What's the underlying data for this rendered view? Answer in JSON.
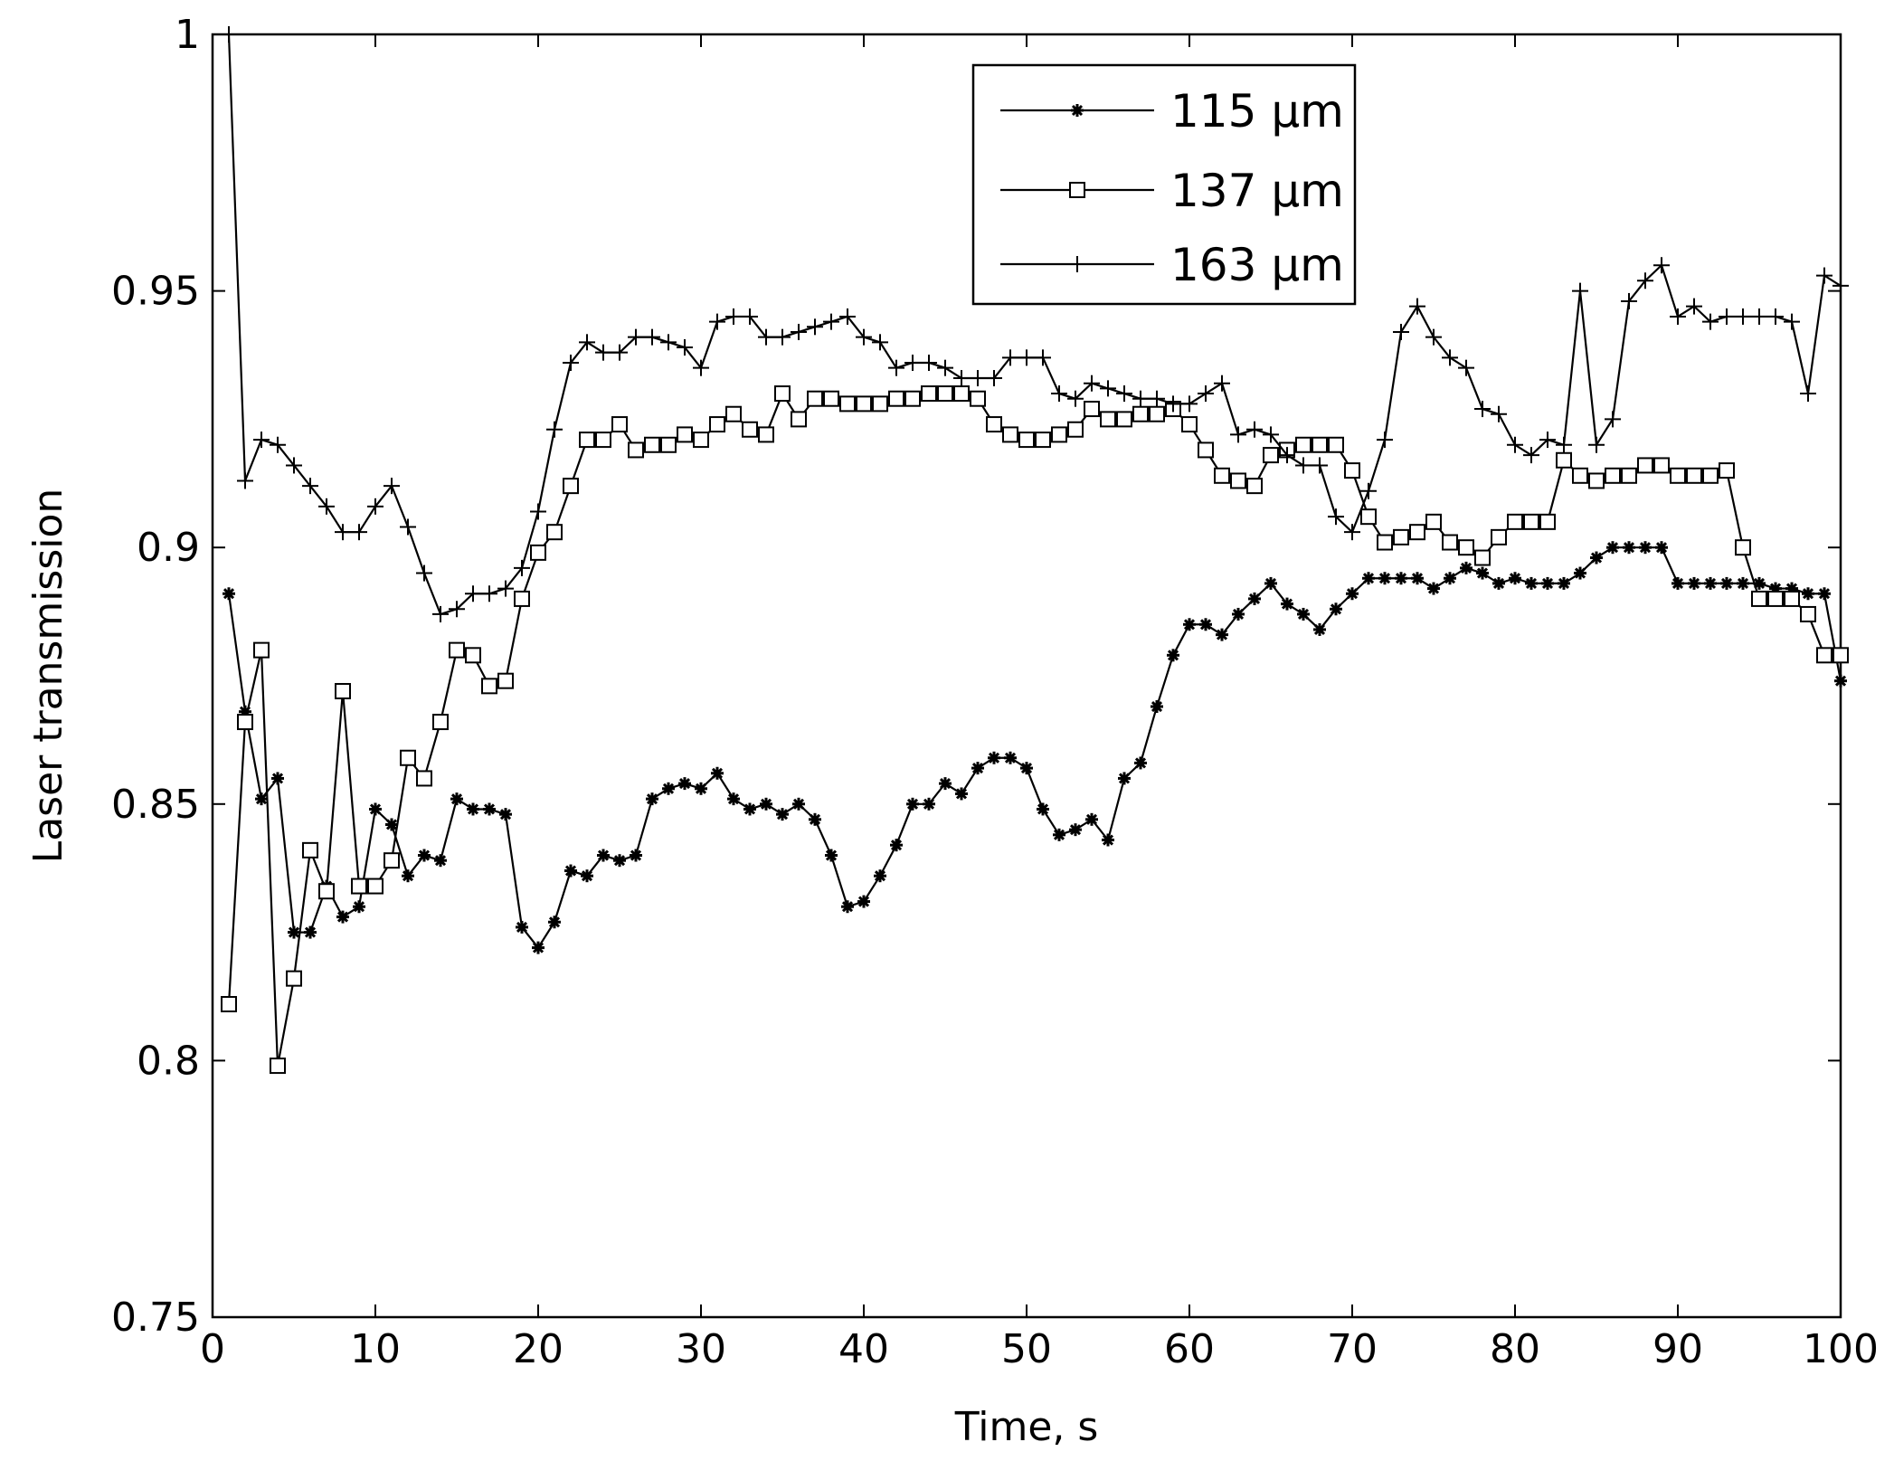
{
  "chart_data": {
    "type": "line",
    "title": "",
    "xlabel": "Time, s",
    "ylabel": "Laser transmission",
    "xlim": [
      0,
      100
    ],
    "ylim": [
      0.75,
      1.0
    ],
    "xticks": [
      0,
      10,
      20,
      30,
      40,
      50,
      60,
      70,
      80,
      90,
      100
    ],
    "yticks": [
      0.75,
      0.8,
      0.85,
      0.9,
      0.95,
      1.0
    ],
    "xtick_labels": [
      "0",
      "10",
      "20",
      "30",
      "40",
      "50",
      "60",
      "70",
      "80",
      "90",
      "100"
    ],
    "ytick_labels": [
      "0.75",
      "0.8",
      "0.85",
      "0.9",
      "0.95",
      "1"
    ],
    "grid": false,
    "legend_position": "top-right",
    "x": [
      1,
      2,
      3,
      4,
      5,
      6,
      7,
      8,
      9,
      10,
      11,
      12,
      13,
      14,
      15,
      16,
      17,
      18,
      19,
      20,
      21,
      22,
      23,
      24,
      25,
      26,
      27,
      28,
      29,
      30,
      31,
      32,
      33,
      34,
      35,
      36,
      37,
      38,
      39,
      40,
      41,
      42,
      43,
      44,
      45,
      46,
      47,
      48,
      49,
      50,
      51,
      52,
      53,
      54,
      55,
      56,
      57,
      58,
      59,
      60,
      61,
      62,
      63,
      64,
      65,
      66,
      67,
      68,
      69,
      70,
      71,
      72,
      73,
      74,
      75,
      76,
      77,
      78,
      79,
      80,
      81,
      82,
      83,
      84,
      85,
      86,
      87,
      88,
      89,
      90,
      91,
      92,
      93,
      94,
      95,
      96,
      97,
      98,
      99,
      100
    ],
    "series": [
      {
        "name": "115 µm",
        "marker": "star",
        "values": [
          0.891,
          0.868,
          0.851,
          0.855,
          0.825,
          0.825,
          0.834,
          0.828,
          0.83,
          0.849,
          0.846,
          0.836,
          0.84,
          0.839,
          0.851,
          0.849,
          0.849,
          0.848,
          0.826,
          0.822,
          0.827,
          0.837,
          0.836,
          0.84,
          0.839,
          0.84,
          0.851,
          0.853,
          0.854,
          0.853,
          0.856,
          0.851,
          0.849,
          0.85,
          0.848,
          0.85,
          0.847,
          0.84,
          0.83,
          0.831,
          0.836,
          0.842,
          0.85,
          0.85,
          0.854,
          0.852,
          0.857,
          0.859,
          0.859,
          0.857,
          0.849,
          0.844,
          0.845,
          0.847,
          0.843,
          0.855,
          0.858,
          0.869,
          0.879,
          0.885,
          0.885,
          0.883,
          0.887,
          0.89,
          0.893,
          0.889,
          0.887,
          0.884,
          0.888,
          0.891,
          0.894,
          0.894,
          0.894,
          0.894,
          0.892,
          0.894,
          0.896,
          0.895,
          0.893,
          0.894,
          0.893,
          0.893,
          0.893,
          0.895,
          0.898,
          0.9,
          0.9,
          0.9,
          0.9,
          0.893,
          0.893,
          0.893,
          0.893,
          0.893,
          0.893,
          0.892,
          0.892,
          0.891,
          0.891,
          0.874
        ]
      },
      {
        "name": "137 µm",
        "marker": "square",
        "values": [
          0.811,
          0.866,
          0.88,
          0.799,
          0.816,
          0.841,
          0.833,
          0.872,
          0.834,
          0.834,
          0.839,
          0.859,
          0.855,
          0.866,
          0.88,
          0.879,
          0.873,
          0.874,
          0.89,
          0.899,
          0.903,
          0.912,
          0.921,
          0.921,
          0.924,
          0.919,
          0.92,
          0.92,
          0.922,
          0.921,
          0.924,
          0.926,
          0.923,
          0.922,
          0.93,
          0.925,
          0.929,
          0.929,
          0.928,
          0.928,
          0.928,
          0.929,
          0.929,
          0.93,
          0.93,
          0.93,
          0.929,
          0.924,
          0.922,
          0.921,
          0.921,
          0.922,
          0.923,
          0.927,
          0.925,
          0.925,
          0.926,
          0.926,
          0.927,
          0.924,
          0.919,
          0.914,
          0.913,
          0.912,
          0.918,
          0.919,
          0.92,
          0.92,
          0.92,
          0.915,
          0.906,
          0.901,
          0.902,
          0.903,
          0.905,
          0.901,
          0.9,
          0.898,
          0.902,
          0.905,
          0.905,
          0.905,
          0.917,
          0.914,
          0.913,
          0.914,
          0.914,
          0.916,
          0.916,
          0.914,
          0.914,
          0.914,
          0.915,
          0.9,
          0.89,
          0.89,
          0.89,
          0.887,
          0.879,
          0.879
        ]
      },
      {
        "name": "163 µm",
        "marker": "plus",
        "values": [
          1.0,
          0.913,
          0.921,
          0.92,
          0.916,
          0.912,
          0.908,
          0.903,
          0.903,
          0.908,
          0.912,
          0.904,
          0.895,
          0.887,
          0.888,
          0.891,
          0.891,
          0.892,
          0.896,
          0.907,
          0.923,
          0.936,
          0.94,
          0.938,
          0.938,
          0.941,
          0.941,
          0.94,
          0.939,
          0.935,
          0.944,
          0.945,
          0.945,
          0.941,
          0.941,
          0.942,
          0.943,
          0.944,
          0.945,
          0.941,
          0.94,
          0.935,
          0.936,
          0.936,
          0.935,
          0.933,
          0.933,
          0.933,
          0.937,
          0.937,
          0.937,
          0.93,
          0.929,
          0.932,
          0.931,
          0.93,
          0.929,
          0.929,
          0.928,
          0.928,
          0.93,
          0.932,
          0.922,
          0.923,
          0.922,
          0.918,
          0.916,
          0.916,
          0.906,
          0.903,
          0.911,
          0.921,
          0.942,
          0.947,
          0.941,
          0.937,
          0.935,
          0.927,
          0.926,
          0.92,
          0.918,
          0.921,
          0.92,
          0.95,
          0.92,
          0.925,
          0.948,
          0.952,
          0.955,
          0.945,
          0.947,
          0.944,
          0.945,
          0.945,
          0.945,
          0.945,
          0.944,
          0.93,
          0.953,
          0.951
        ]
      }
    ]
  }
}
